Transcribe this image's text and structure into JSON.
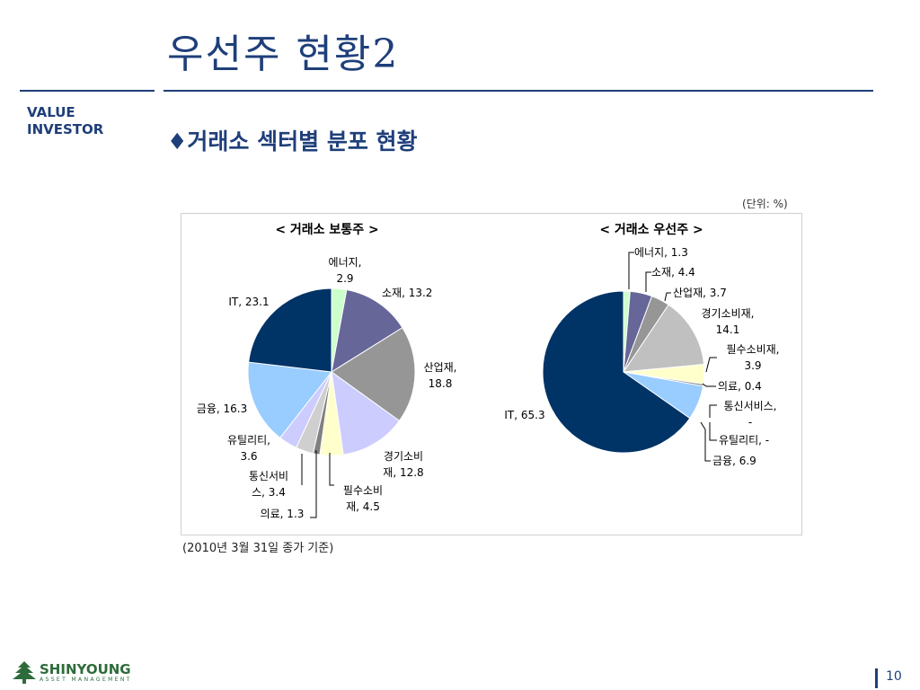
{
  "page": {
    "title": "우선주 현황2",
    "brand_line1": "VALUE",
    "brand_line2": "INVESTOR",
    "subtitle_marker": "♦",
    "subtitle": "거래소 섹터별 분포 현황",
    "unit": "(단위: %)",
    "note": "(2010년 3월 31일 종가 기준)",
    "logo_name": "SHINYOUNG",
    "logo_sub": "ASSET MANAGEMENT",
    "page_number": "10"
  },
  "chart_data": [
    {
      "type": "pie",
      "title": "< 거래소 보통주 >",
      "colors": [
        "#ccffcc",
        "#666699",
        "#969696",
        "#ccccff",
        "#ffffcc",
        "#808080",
        "#cfcfcf",
        "#ccccff",
        "#99ccff",
        "#003366"
      ],
      "slices": [
        {
          "name": "에너지",
          "value": 2.9,
          "label_lines": [
            "에너지,",
            "2.9"
          ]
        },
        {
          "name": "소재",
          "value": 13.2,
          "label_lines": [
            "소재, 13.2"
          ]
        },
        {
          "name": "산업재",
          "value": 18.8,
          "label_lines": [
            "산업재,",
            "18.8"
          ]
        },
        {
          "name": "경기소비재",
          "value": 12.8,
          "label_lines": [
            "경기소비",
            "재, 12.8"
          ]
        },
        {
          "name": "필수소비재",
          "value": 4.5,
          "label_lines": [
            "필수소비",
            "재, 4.5"
          ]
        },
        {
          "name": "의료",
          "value": 1.3,
          "label_lines": [
            "의료, 1.3"
          ]
        },
        {
          "name": "통신서비스",
          "value": 3.4,
          "label_lines": [
            "통신서비",
            "스, 3.4"
          ]
        },
        {
          "name": "유틸리티",
          "value": 3.6,
          "label_lines": [
            "유틸리티,",
            "3.6"
          ]
        },
        {
          "name": "금융",
          "value": 16.3,
          "label_lines": [
            "금융, 16.3"
          ]
        },
        {
          "name": "IT",
          "value": 23.1,
          "label_lines": [
            "IT, 23.1"
          ]
        }
      ]
    },
    {
      "type": "pie",
      "title": "< 거래소 우선주 >",
      "colors": [
        "#ccffcc",
        "#666699",
        "#969696",
        "#c0c0c0",
        "#ffffcc",
        "#808080",
        "#cfcfcf",
        "#ccccff",
        "#99ccff",
        "#003366"
      ],
      "slices": [
        {
          "name": "에너지",
          "value": 1.3,
          "label_lines": [
            "에너지, 1.3"
          ]
        },
        {
          "name": "소재",
          "value": 4.4,
          "label_lines": [
            "소재, 4.4"
          ]
        },
        {
          "name": "산업재",
          "value": 3.7,
          "label_lines": [
            "산업재, 3.7"
          ]
        },
        {
          "name": "경기소비재",
          "value": 14.1,
          "label_lines": [
            "경기소비재,",
            "14.1"
          ]
        },
        {
          "name": "필수소비재",
          "value": 3.9,
          "label_lines": [
            "필수소비재,",
            "3.9"
          ]
        },
        {
          "name": "의료",
          "value": 0.4,
          "label_lines": [
            "의료, 0.4"
          ]
        },
        {
          "name": "통신서비스",
          "value": null,
          "label_lines": [
            "통신서비스,",
            "-"
          ]
        },
        {
          "name": "유틸리티",
          "value": null,
          "label_lines": [
            "유틸리티, -"
          ]
        },
        {
          "name": "금융",
          "value": 6.9,
          "label_lines": [
            "금융, 6.9"
          ]
        },
        {
          "name": "IT",
          "value": 65.3,
          "label_lines": [
            "IT, 65.3"
          ]
        }
      ]
    }
  ]
}
